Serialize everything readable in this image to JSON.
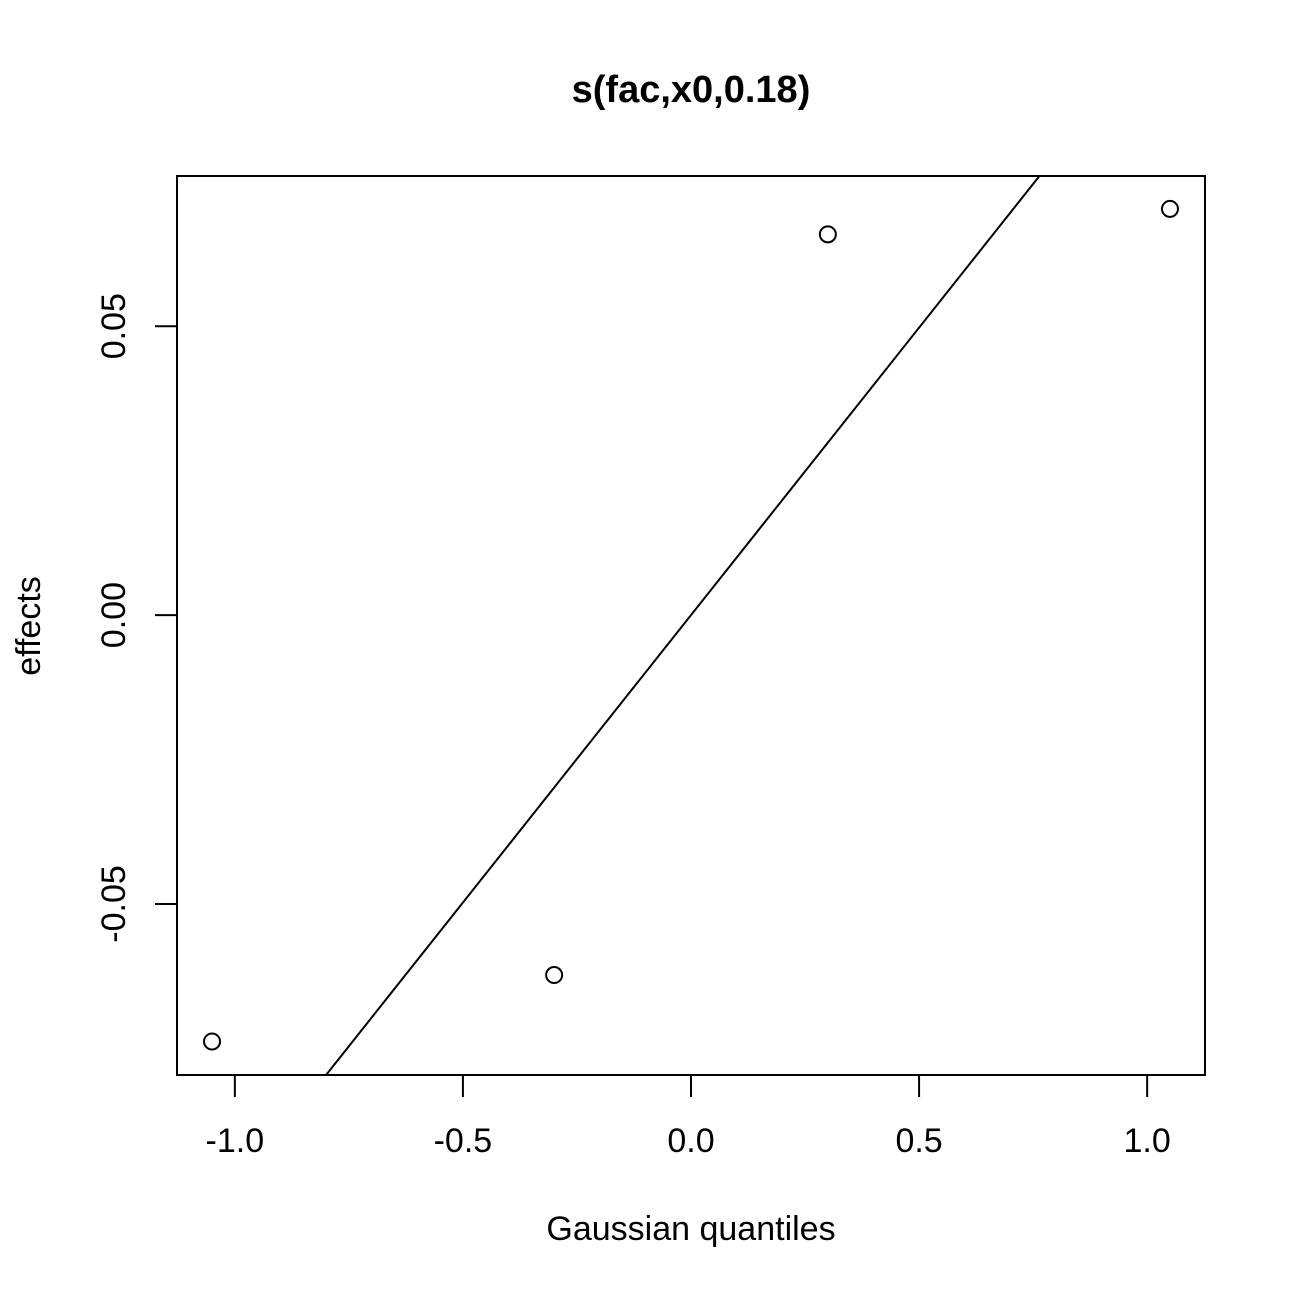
{
  "chart_data": {
    "type": "scatter",
    "title": "s(fac,x0,0.18)",
    "xlabel": "Gaussian quantiles",
    "ylabel": "effects",
    "xlim": [
      -1.1268,
      1.1268
    ],
    "ylim": [
      -0.0796,
      0.076
    ],
    "x_ticks": [
      -1.0,
      -0.5,
      0.0,
      0.5,
      1.0
    ],
    "x_tick_labels": [
      "-1.0",
      "-0.5",
      "0.0",
      "0.5",
      "1.0"
    ],
    "y_ticks": [
      -0.05,
      0.0,
      0.05
    ],
    "y_tick_labels": [
      "-0.05",
      "0.00",
      "0.05"
    ],
    "grid": false,
    "legend": "none",
    "points": {
      "x": [
        -1.05,
        -0.3,
        0.3,
        1.05
      ],
      "y": [
        -0.0738,
        -0.0623,
        0.0659,
        0.0703
      ]
    },
    "reference_line": {
      "intercept": 0.0,
      "slope": 0.0995
    }
  }
}
